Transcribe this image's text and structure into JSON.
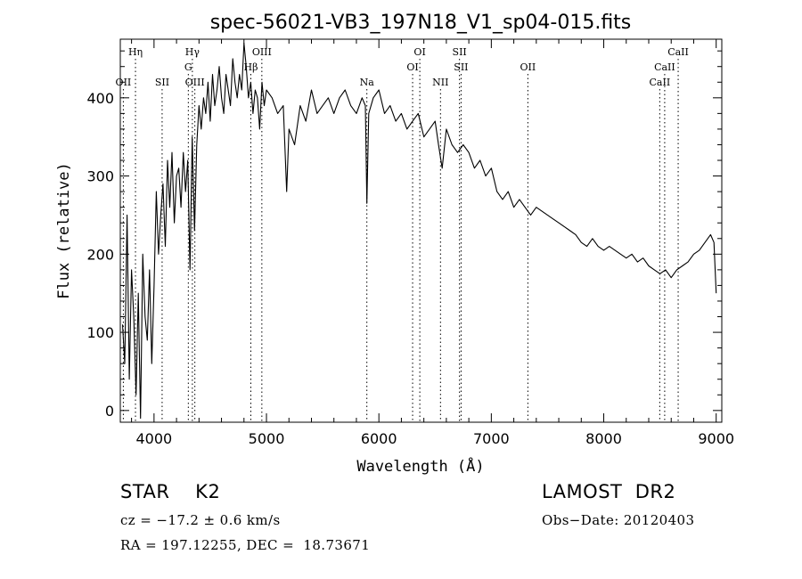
{
  "chart_data": {
    "type": "line",
    "title": "spec-56021-VB3_197N18_V1_sp04-015.fits",
    "xlabel": "Wavelength (Å)",
    "ylabel": "Flux (relative)",
    "xlim": [
      3700,
      9050
    ],
    "ylim": [
      -15,
      475
    ],
    "xticks": [
      4000,
      5000,
      6000,
      7000,
      8000,
      9000
    ],
    "yticks": [
      0,
      100,
      200,
      300,
      400
    ],
    "grid": false,
    "series": [
      {
        "x": [
          3720,
          3740,
          3760,
          3780,
          3800,
          3820,
          3840,
          3860,
          3880,
          3900,
          3920,
          3940,
          3960,
          3980,
          4000,
          4020,
          4040,
          4060,
          4080,
          4100,
          4120,
          4140,
          4160,
          4180,
          4200,
          4220,
          4240,
          4260,
          4280,
          4300,
          4320,
          4340,
          4360,
          4380,
          4400,
          4420,
          4440,
          4460,
          4480,
          4500,
          4520,
          4540,
          4560,
          4580,
          4600,
          4620,
          4640,
          4660,
          4680,
          4700,
          4720,
          4740,
          4760,
          4780,
          4800,
          4820,
          4840,
          4860,
          4880,
          4900,
          4920,
          4940,
          4960,
          4980,
          5000,
          5050,
          5100,
          5150,
          5180,
          5200,
          5250,
          5300,
          5350,
          5400,
          5450,
          5500,
          5550,
          5600,
          5650,
          5700,
          5750,
          5800,
          5850,
          5880,
          5893,
          5910,
          5950,
          6000,
          6050,
          6100,
          6150,
          6200,
          6250,
          6300,
          6350,
          6400,
          6450,
          6500,
          6530,
          6563,
          6600,
          6650,
          6700,
          6750,
          6800,
          6850,
          6900,
          6950,
          7000,
          7050,
          7100,
          7150,
          7200,
          7250,
          7300,
          7350,
          7400,
          7450,
          7500,
          7550,
          7600,
          7650,
          7700,
          7750,
          7800,
          7850,
          7900,
          7950,
          8000,
          8050,
          8100,
          8150,
          8200,
          8250,
          8300,
          8350,
          8400,
          8450,
          8500,
          8550,
          8600,
          8650,
          8700,
          8750,
          8800,
          8850,
          8900,
          8950,
          8980,
          9000
        ],
        "y": [
          110,
          60,
          250,
          40,
          180,
          120,
          20,
          150,
          -10,
          200,
          120,
          90,
          180,
          60,
          160,
          280,
          200,
          250,
          290,
          210,
          320,
          260,
          330,
          240,
          300,
          310,
          260,
          330,
          280,
          320,
          180,
          350,
          230,
          340,
          390,
          360,
          400,
          380,
          420,
          370,
          430,
          390,
          410,
          440,
          400,
          380,
          430,
          410,
          390,
          450,
          420,
          400,
          430,
          410,
          470,
          440,
          400,
          420,
          380,
          410,
          400,
          360,
          420,
          390,
          410,
          400,
          380,
          390,
          280,
          360,
          340,
          390,
          370,
          410,
          380,
          390,
          400,
          380,
          400,
          410,
          390,
          380,
          400,
          390,
          265,
          380,
          400,
          410,
          380,
          390,
          370,
          380,
          360,
          370,
          380,
          350,
          360,
          370,
          340,
          310,
          360,
          340,
          330,
          340,
          330,
          310,
          320,
          300,
          310,
          280,
          270,
          280,
          260,
          270,
          260,
          250,
          260,
          255,
          250,
          245,
          240,
          235,
          230,
          225,
          215,
          210,
          220,
          210,
          205,
          210,
          205,
          200,
          195,
          200,
          190,
          195,
          185,
          180,
          175,
          180,
          170,
          180,
          185,
          190,
          200,
          205,
          215,
          225,
          215,
          150
        ]
      }
    ],
    "line_annotations": [
      {
        "label": "OII",
        "x": 3727,
        "row": 3
      },
      {
        "label": "Hη",
        "x": 3835,
        "row": 1
      },
      {
        "label": "SII",
        "x": 4072,
        "row": 3
      },
      {
        "label": "Hγ",
        "x": 4341,
        "row": 1
      },
      {
        "label": "G",
        "x": 4305,
        "row": 2
      },
      {
        "label": "OIII",
        "x": 4363,
        "row": 3
      },
      {
        "label": "Hβ",
        "x": 4861,
        "row": 2
      },
      {
        "label": "OIII",
        "x": 4959,
        "row": 1
      },
      {
        "label": "Na",
        "x": 5893,
        "row": 3
      },
      {
        "label": "OI",
        "x": 6300,
        "row": 2
      },
      {
        "label": "OI",
        "x": 6364,
        "row": 1
      },
      {
        "label": "NII",
        "x": 6548,
        "row": 3
      },
      {
        "label": "SII",
        "x": 6717,
        "row": 1
      },
      {
        "label": "SII",
        "x": 6731,
        "row": 2
      },
      {
        "label": "OII",
        "x": 7325,
        "row": 2
      },
      {
        "label": "CaII",
        "x": 8498,
        "row": 3
      },
      {
        "label": "CaII",
        "x": 8542,
        "row": 2
      },
      {
        "label": "CaII",
        "x": 8662,
        "row": 1
      }
    ]
  },
  "info": {
    "object_class": "STAR    K2",
    "survey": "LAMOST  DR2",
    "cz": "cz = −17.2 ± 0.6 km/s",
    "obs_date": "Obs−Date: 20120403",
    "coords": "RA = 197.12255, DEC =  18.73671"
  },
  "colors": {
    "line": "#000000",
    "background": "#ffffff",
    "markers": "#000000"
  }
}
